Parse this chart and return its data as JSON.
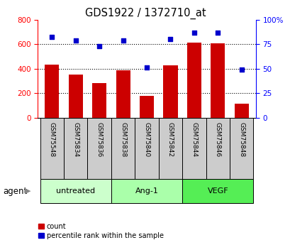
{
  "title": "GDS1922 / 1372710_at",
  "samples": [
    "GSM75548",
    "GSM75834",
    "GSM75836",
    "GSM75838",
    "GSM75840",
    "GSM75842",
    "GSM75844",
    "GSM75846",
    "GSM75848"
  ],
  "counts": [
    435,
    350,
    280,
    385,
    178,
    425,
    610,
    605,
    112
  ],
  "percentiles": [
    82,
    79,
    73,
    79,
    51,
    80,
    87,
    87,
    49
  ],
  "bar_color": "#cc0000",
  "dot_color": "#0000cc",
  "left_ylim": [
    0,
    800
  ],
  "right_ylim": [
    0,
    100
  ],
  "left_yticks": [
    0,
    200,
    400,
    600,
    800
  ],
  "right_yticks": [
    0,
    25,
    50,
    75,
    100
  ],
  "right_yticklabels": [
    "0",
    "25",
    "50",
    "75",
    "100%"
  ],
  "grid_values": [
    200,
    400,
    600
  ],
  "agent_label": "agent",
  "legend_count_label": "count",
  "legend_pct_label": "percentile rank within the sample",
  "bar_width": 0.6,
  "sample_box_color": "#cccccc",
  "group_info": [
    {
      "label": "untreated",
      "start": 0,
      "end": 3,
      "color": "#ccffcc"
    },
    {
      "label": "Ang-1",
      "start": 3,
      "end": 6,
      "color": "#aaffaa"
    },
    {
      "label": "VEGF",
      "start": 6,
      "end": 9,
      "color": "#55ee55"
    }
  ]
}
